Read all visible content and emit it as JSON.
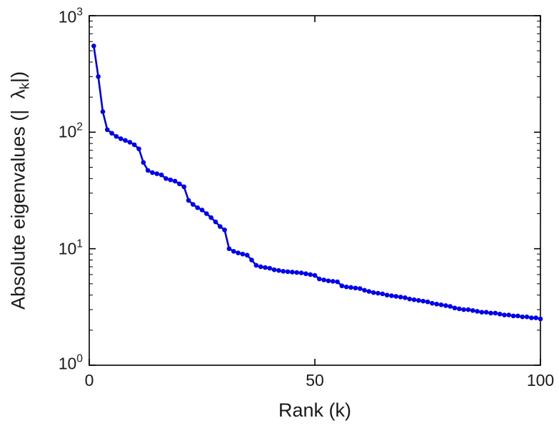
{
  "figure": {
    "background": "#ffffff",
    "axes_color": "#000000"
  },
  "chart_data": {
    "type": "line",
    "title": "",
    "xlabel": "Rank (k)",
    "ylabel": "Absolute eigenvalues (|λk|)",
    "ylabel_prefix": "Absolute eigenvalues (|  ",
    "ylabel_lambda": "λ",
    "ylabel_sub": "k",
    "ylabel_suffix": "|)",
    "x_range": [
      0,
      100
    ],
    "y_range": [
      1,
      1000
    ],
    "y_scale": "log",
    "grid": false,
    "legend": "none",
    "line_color": "#0000EE",
    "marker": "dot",
    "x_ticks": {
      "values": [
        0,
        50,
        100
      ],
      "labels": [
        "0",
        "50",
        "100"
      ]
    },
    "y_ticks": {
      "values": [
        1,
        10,
        100,
        1000
      ],
      "labels_base": [
        "10",
        "10",
        "10",
        "10"
      ],
      "labels_exp": [
        "0",
        "1",
        "2",
        "3"
      ]
    },
    "series": [
      {
        "name": "absolute-eigenvalues",
        "x_start": 1,
        "x_step": 1,
        "values": [
          550,
          300,
          150,
          105,
          98,
          92,
          88,
          85,
          82,
          78,
          72,
          55,
          47,
          45,
          44,
          43,
          40,
          39,
          38,
          36,
          34,
          26,
          24,
          22.5,
          21.5,
          20,
          18.5,
          17,
          15.5,
          14.5,
          10,
          9.5,
          9.2,
          9,
          8.8,
          8,
          7.2,
          7,
          6.9,
          6.8,
          6.6,
          6.5,
          6.4,
          6.35,
          6.3,
          6.25,
          6.2,
          6.1,
          6,
          5.9,
          5.5,
          5.4,
          5.3,
          5.25,
          5.2,
          4.8,
          4.7,
          4.65,
          4.6,
          4.55,
          4.4,
          4.3,
          4.2,
          4.15,
          4.1,
          4,
          3.95,
          3.9,
          3.85,
          3.8,
          3.7,
          3.65,
          3.6,
          3.55,
          3.5,
          3.4,
          3.35,
          3.3,
          3.25,
          3.2,
          3.1,
          3.05,
          3,
          3,
          2.95,
          2.9,
          2.85,
          2.85,
          2.8,
          2.8,
          2.75,
          2.7,
          2.7,
          2.65,
          2.65,
          2.6,
          2.6,
          2.55,
          2.55,
          2.5
        ]
      }
    ]
  }
}
